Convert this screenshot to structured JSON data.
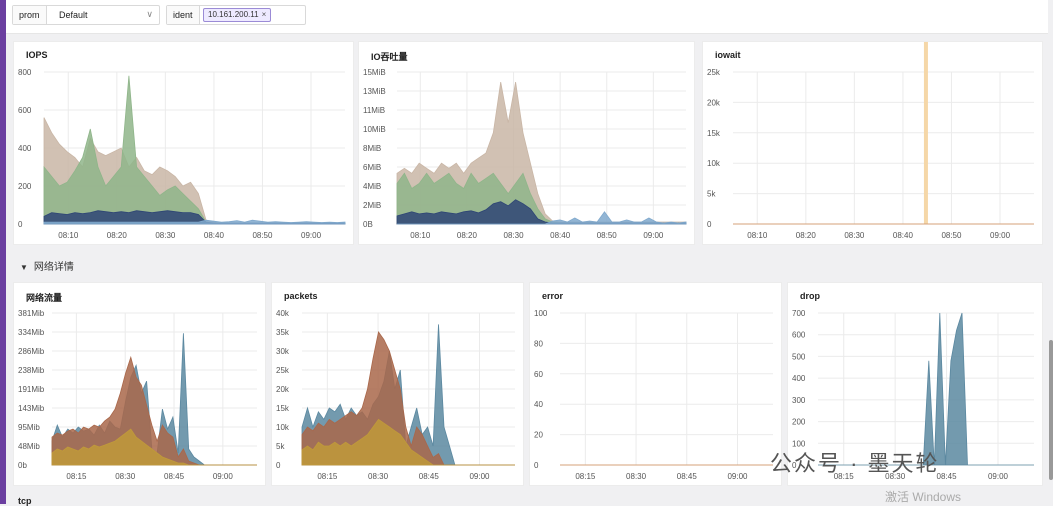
{
  "filters": {
    "prom_label": "prom",
    "prom_value": "Default",
    "ident_label": "ident",
    "ident_tag": "10.161.200.11",
    "tag_close": "×",
    "chevron": "∨"
  },
  "section": {
    "arrow": "▼",
    "title": "网络详情"
  },
  "next_panel_title": "tcp",
  "watermark": {
    "account": "公众号 · 墨天轮",
    "activate": "激活 Windows"
  },
  "colors": {
    "brand": "#6b3fa0",
    "grid": "#ebebeb"
  },
  "chart_data": [
    {
      "id": "iops",
      "title": "IOPS",
      "type": "area",
      "yticks": [
        "800",
        "600",
        "400",
        "200",
        "0"
      ],
      "ylim": [
        0,
        800
      ],
      "xticks": [
        "08:10",
        "08:20",
        "08:30",
        "08:40",
        "08:50",
        "09:00"
      ],
      "series": [
        {
          "color": "#c9b6a6",
          "values": [
            560,
            480,
            420,
            380,
            350,
            300,
            450,
            380,
            360,
            380,
            400,
            300,
            350,
            280,
            260,
            300,
            280,
            250,
            200,
            220,
            160,
            20,
            10,
            5,
            5,
            5,
            5,
            5,
            5,
            5,
            5,
            5,
            5,
            5,
            5,
            5,
            5,
            5,
            5,
            5
          ]
        },
        {
          "color": "#8fb58a",
          "values": [
            300,
            250,
            200,
            220,
            280,
            350,
            500,
            300,
            200,
            250,
            300,
            780,
            300,
            250,
            200,
            150,
            180,
            200,
            160,
            120,
            80,
            10,
            5,
            5,
            5,
            5,
            5,
            5,
            5,
            5,
            5,
            5,
            5,
            5,
            5,
            5,
            5,
            5,
            5,
            5
          ]
        },
        {
          "color": "#2e4575",
          "values": [
            40,
            60,
            55,
            50,
            60,
            55,
            60,
            70,
            65,
            60,
            65,
            60,
            70,
            65,
            60,
            65,
            70,
            65,
            60,
            60,
            50,
            10,
            5,
            5,
            5,
            5,
            5,
            5,
            5,
            5,
            5,
            5,
            5,
            5,
            5,
            5,
            5,
            5,
            5,
            5
          ]
        },
        {
          "color": "#7fa8cc",
          "values": [
            10,
            10,
            10,
            10,
            10,
            10,
            10,
            10,
            10,
            10,
            10,
            10,
            10,
            10,
            10,
            10,
            10,
            10,
            10,
            10,
            10,
            20,
            15,
            10,
            12,
            18,
            10,
            20,
            15,
            10,
            12,
            10,
            8,
            10,
            12,
            10,
            8,
            10,
            8,
            10
          ]
        }
      ]
    },
    {
      "id": "io_throughput",
      "title": "IO吞吐量",
      "type": "area",
      "yticks": [
        "15MiB",
        "13MiB",
        "11MiB",
        "10MiB",
        "8MiB",
        "6MiB",
        "4MiB",
        "2MiB",
        "0B"
      ],
      "ylim": [
        0,
        15
      ],
      "xticks": [
        "08:10",
        "08:20",
        "08:30",
        "08:40",
        "08:50",
        "09:00"
      ],
      "series": [
        {
          "color": "#c9b6a6",
          "values": [
            5,
            5.5,
            5,
            6,
            5.5,
            5,
            6,
            5.5,
            6,
            5,
            6,
            6.5,
            7,
            9,
            14,
            10,
            14,
            9,
            6,
            3,
            1,
            0.3,
            0.2,
            0.2,
            0.2,
            0.2,
            0.2,
            0.2,
            0.2,
            0.2,
            0.2,
            0.2,
            0.2,
            0.2,
            0.2,
            0.2,
            0.2,
            0.2,
            0.2,
            0.2
          ]
        },
        {
          "color": "#8fb58a",
          "values": [
            4,
            5,
            3.5,
            4,
            5,
            4,
            4.5,
            5,
            4,
            3.5,
            5,
            4,
            4.5,
            5,
            4,
            3,
            4,
            5,
            3,
            1.5,
            0.5,
            0.2,
            0.1,
            0.1,
            0.1,
            0.1,
            0.1,
            0.1,
            0.1,
            0.1,
            0.1,
            0.1,
            0.1,
            0.1,
            0.1,
            0.1,
            0.1,
            0.1,
            0.1,
            0.1
          ]
        },
        {
          "color": "#2e4575",
          "values": [
            0.8,
            1,
            1.2,
            1,
            1.1,
            1,
            1.2,
            1.1,
            1,
            1.2,
            1.3,
            1.1,
            1.4,
            2,
            2.2,
            1.8,
            2.4,
            2,
            1.5,
            0.5,
            0.2,
            0.1,
            0.1,
            0.1,
            0.1,
            0.1,
            0.1,
            0.1,
            0.1,
            0.1,
            0.1,
            0.1,
            0.1,
            0.1,
            0.1,
            0.1,
            0.1,
            0.1,
            0.1,
            0.1
          ]
        },
        {
          "color": "#7fa8cc",
          "values": [
            0,
            0,
            0,
            0,
            0,
            0,
            0,
            0,
            0,
            0,
            0,
            0,
            0,
            0,
            0,
            0,
            0,
            0,
            0,
            0,
            0,
            0.3,
            0.4,
            0.2,
            0.6,
            0.2,
            0.3,
            0.2,
            1.2,
            0.2,
            0.2,
            0.4,
            0.2,
            0.2,
            0.6,
            0.2,
            0.1,
            0.2,
            0.1,
            0.2
          ]
        }
      ]
    },
    {
      "id": "iowait",
      "title": "iowait",
      "type": "bar",
      "yticks": [
        "25k",
        "20k",
        "15k",
        "10k",
        "5k",
        "0"
      ],
      "ylim": [
        0,
        27000
      ],
      "xticks": [
        "08:10",
        "08:20",
        "08:30",
        "08:40",
        "08:50",
        "09:00"
      ],
      "series": [
        {
          "color": "#f5d7a8",
          "values": [
            0,
            0,
            0,
            0,
            0,
            0,
            0,
            0,
            0,
            0,
            0,
            0,
            0,
            0,
            0,
            0,
            0,
            0,
            0,
            0,
            0,
            0,
            0,
            0,
            0,
            25500,
            0,
            0,
            0,
            0,
            0,
            0,
            0,
            0,
            0,
            0,
            0,
            0,
            0,
            0
          ]
        }
      ]
    },
    {
      "id": "net_traffic",
      "title": "网络流量",
      "type": "area",
      "yticks": [
        "381Mib",
        "334Mib",
        "286Mib",
        "238Mib",
        "191Mib",
        "143Mib",
        "95Mib",
        "48Mib",
        "0b"
      ],
      "ylim": [
        0,
        381
      ],
      "xticks": [
        "08:15",
        "08:30",
        "08:45",
        "09:00"
      ],
      "series": [
        {
          "color": "#5b88a0",
          "values": [
            60,
            100,
            70,
            90,
            80,
            95,
            85,
            90,
            75,
            100,
            80,
            110,
            95,
            90,
            160,
            220,
            250,
            180,
            210,
            40,
            30,
            140,
            90,
            120,
            30,
            330,
            40,
            20,
            10,
            0,
            0,
            0,
            0,
            0,
            0,
            0,
            0,
            0,
            0,
            0
          ]
        },
        {
          "color": "#a9674a",
          "values": [
            70,
            80,
            75,
            85,
            90,
            80,
            95,
            90,
            100,
            95,
            110,
            120,
            140,
            180,
            230,
            270,
            220,
            200,
            150,
            100,
            60,
            100,
            80,
            70,
            20,
            40,
            10,
            5,
            0,
            0,
            0,
            0,
            0,
            0,
            0,
            0,
            0,
            0,
            0,
            0
          ]
        },
        {
          "color": "#c09a3a",
          "values": [
            30,
            40,
            35,
            45,
            40,
            35,
            45,
            40,
            50,
            45,
            50,
            55,
            60,
            70,
            80,
            90,
            70,
            60,
            50,
            40,
            30,
            20,
            15,
            10,
            5,
            5,
            0,
            0,
            0,
            0,
            0,
            0,
            0,
            0,
            0,
            0,
            0,
            0,
            0,
            0
          ]
        }
      ]
    },
    {
      "id": "packets",
      "title": "packets",
      "type": "area",
      "yticks": [
        "40k",
        "35k",
        "30k",
        "25k",
        "20k",
        "15k",
        "10k",
        "5k",
        "0"
      ],
      "ylim": [
        0,
        40
      ],
      "xticks": [
        "08:15",
        "08:30",
        "08:45",
        "09:00"
      ],
      "series": [
        {
          "color": "#5b88a0",
          "values": [
            10,
            15,
            10,
            14,
            12,
            15,
            14,
            16,
            12,
            15,
            13,
            14,
            12,
            16,
            18,
            22,
            30,
            20,
            25,
            5,
            10,
            15,
            8,
            10,
            5,
            37,
            10,
            5,
            0,
            0,
            0,
            0,
            0,
            0,
            0,
            0,
            0,
            0,
            0,
            0
          ]
        },
        {
          "color": "#a9674a",
          "values": [
            8,
            10,
            9,
            11,
            10,
            12,
            11,
            12,
            13,
            14,
            13,
            15,
            20,
            28,
            35,
            33,
            30,
            25,
            20,
            10,
            5,
            10,
            8,
            5,
            2,
            3,
            0,
            0,
            0,
            0,
            0,
            0,
            0,
            0,
            0,
            0,
            0,
            0,
            0,
            0
          ]
        },
        {
          "color": "#c09a3a",
          "values": [
            4,
            5,
            4,
            6,
            5,
            5,
            6,
            5,
            6,
            5,
            6,
            7,
            8,
            10,
            12,
            11,
            10,
            9,
            8,
            6,
            4,
            3,
            2,
            1,
            0,
            0,
            0,
            0,
            0,
            0,
            0,
            0,
            0,
            0,
            0,
            0,
            0,
            0,
            0,
            0
          ]
        }
      ]
    },
    {
      "id": "error",
      "title": "error",
      "type": "line",
      "yticks": [
        "100",
        "80",
        "60",
        "40",
        "20",
        "0"
      ],
      "ylim": [
        0,
        100
      ],
      "xticks": [
        "08:15",
        "08:30",
        "08:45",
        "09:00"
      ],
      "series": [
        {
          "color": "#d4a27a",
          "values": [
            0,
            0,
            0,
            0,
            0,
            0,
            0,
            0,
            0,
            0,
            0,
            0,
            0,
            0,
            0,
            0,
            0,
            0,
            0,
            0,
            0,
            0,
            0,
            0,
            0,
            0,
            0,
            0,
            0,
            0,
            0,
            0,
            0,
            0,
            0,
            0,
            0,
            0,
            0,
            0
          ]
        }
      ]
    },
    {
      "id": "drop",
      "title": "drop",
      "type": "area",
      "yticks": [
        "700",
        "600",
        "500",
        "400",
        "300",
        "200",
        "100",
        "0"
      ],
      "ylim": [
        0,
        760
      ],
      "xticks": [
        "08:15",
        "08:30",
        "08:45",
        "09:00"
      ],
      "series": [
        {
          "color": "#5b88a0",
          "values": [
            0,
            0,
            0,
            0,
            0,
            0,
            0,
            0,
            0,
            0,
            0,
            0,
            0,
            0,
            0,
            0,
            0,
            0,
            0,
            0,
            480,
            0,
            700,
            0,
            480,
            620,
            700,
            0,
            0,
            0,
            0,
            0,
            0,
            0,
            0,
            0,
            0,
            0,
            0,
            0
          ]
        }
      ]
    }
  ]
}
